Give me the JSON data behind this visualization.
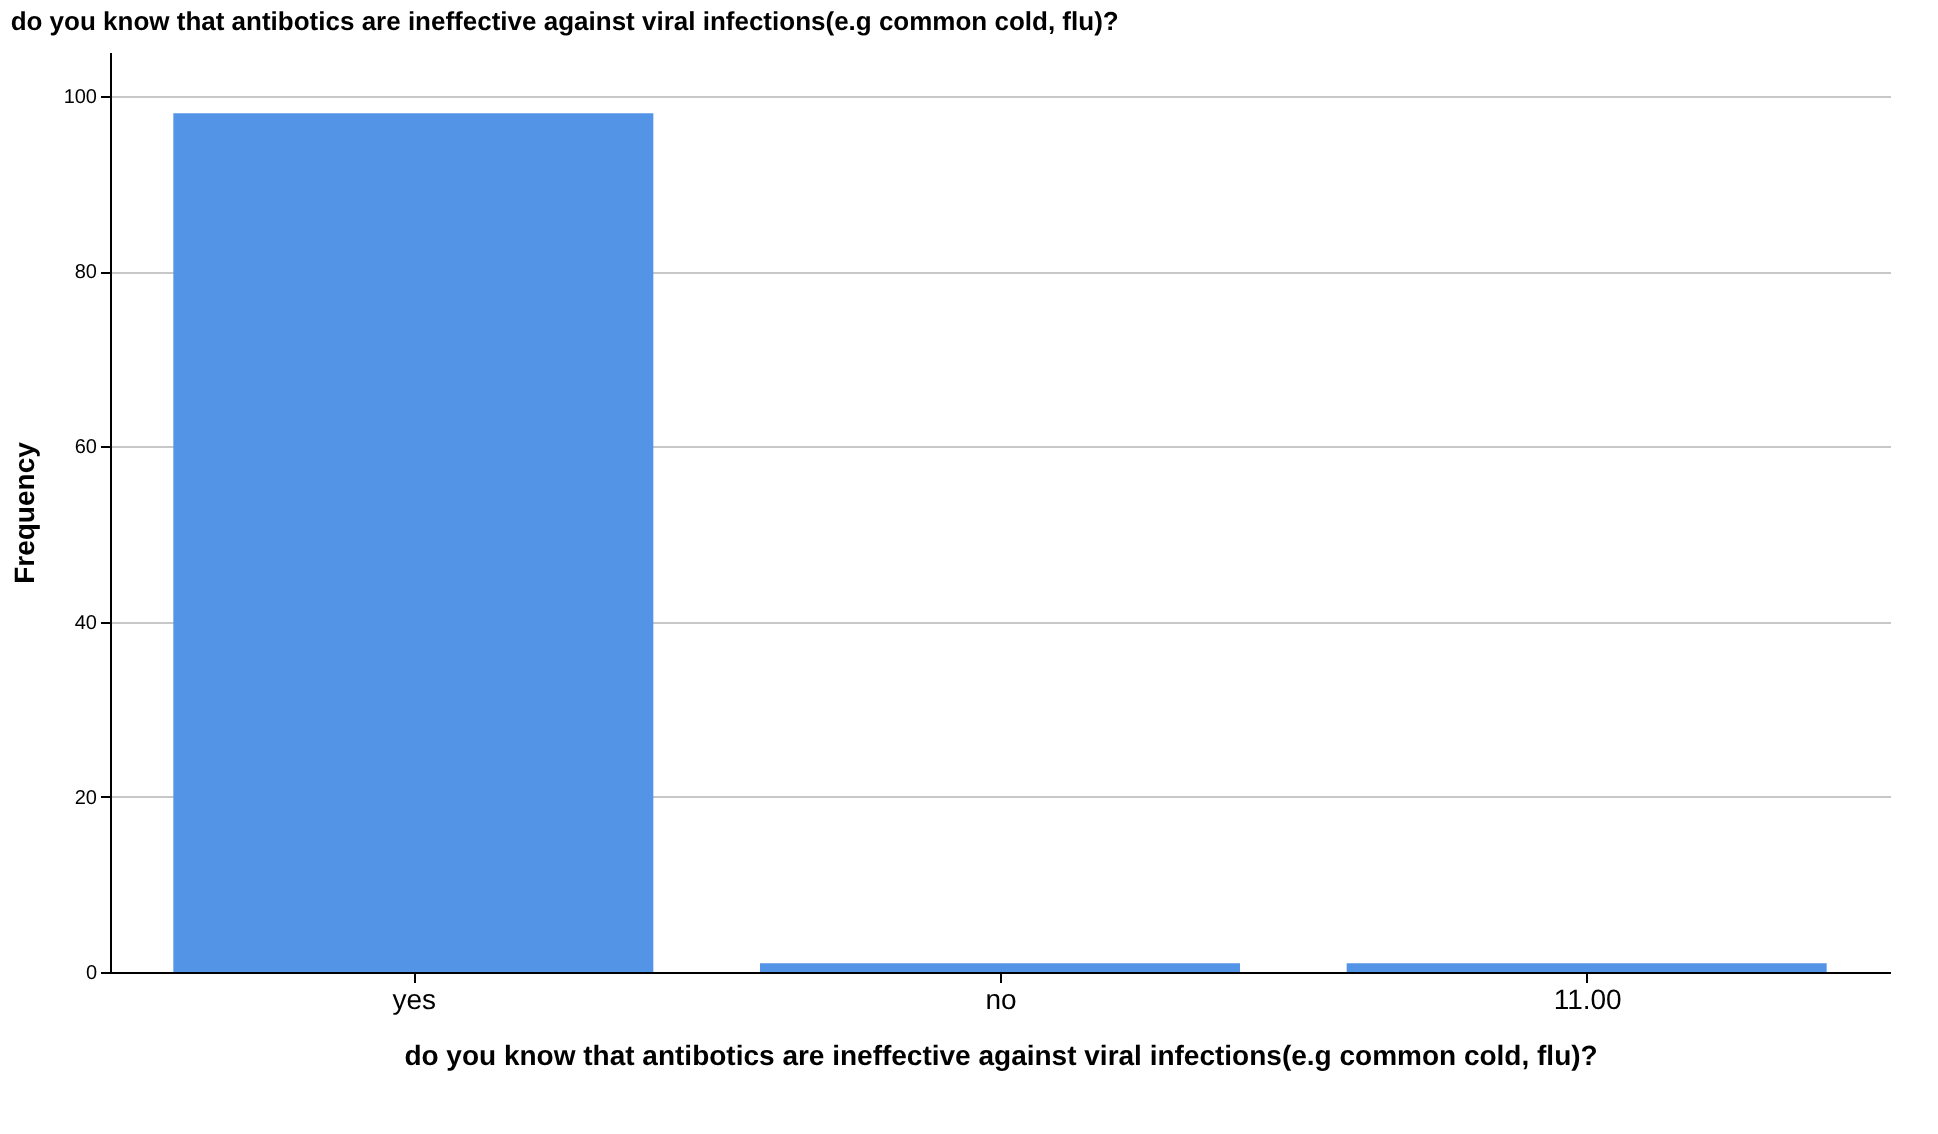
{
  "chart_data": {
    "type": "bar",
    "title": "do you know that antibotics are ineffective against viral infections(e.g common cold, flu)?",
    "xlabel": "do you know that antibotics are ineffective against viral infections(e.g common cold, flu)?",
    "ylabel": "Frequency",
    "categories": [
      "yes",
      "no",
      "11.00"
    ],
    "values": [
      98,
      1,
      1
    ],
    "color": "#5494e6",
    "ylim": [
      0,
      105
    ],
    "yticks": [
      0,
      20,
      40,
      60,
      80,
      100
    ],
    "grid": "y"
  }
}
